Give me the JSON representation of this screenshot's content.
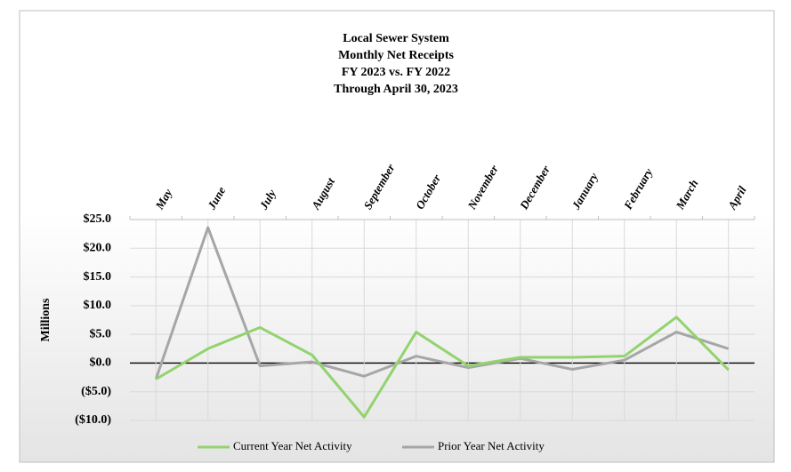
{
  "chart_data": {
    "type": "line",
    "title": [
      "Local Sewer System",
      "Monthly Net Receipts",
      "FY 2023 vs. FY 2022",
      "Through April 30, 2023"
    ],
    "y_label": "Millions",
    "categories": [
      "May",
      "June",
      "July",
      "August",
      "September",
      "October",
      "November",
      "December",
      "January",
      "February",
      "March",
      "April"
    ],
    "series": [
      {
        "name": "Current Year Net Activity",
        "color": "#92d36e",
        "values": [
          -2.8,
          2.5,
          6.2,
          1.4,
          -9.4,
          5.4,
          -0.5,
          1.0,
          1.0,
          1.2,
          8.0,
          -1.2
        ]
      },
      {
        "name": "Prior Year Net Activity",
        "color": "#a6a6a6",
        "values": [
          -2.8,
          23.6,
          -0.5,
          0.2,
          -2.3,
          1.2,
          -0.8,
          0.8,
          -1.1,
          0.5,
          5.4,
          2.5
        ]
      }
    ],
    "ylim": [
      -10,
      25
    ],
    "yticks": [
      {
        "value": -10,
        "label": "($10.0)"
      },
      {
        "value": -5,
        "label": "($5.0)"
      },
      {
        "value": 0,
        "label": "$0.0"
      },
      {
        "value": 5,
        "label": "$5.0"
      },
      {
        "value": 10,
        "label": "$10.0"
      },
      {
        "value": 15,
        "label": "$15.0"
      },
      {
        "value": 20,
        "label": "$20.0"
      },
      {
        "value": 25,
        "label": "$25.0"
      }
    ],
    "grid": true,
    "legend": "bottom"
  }
}
